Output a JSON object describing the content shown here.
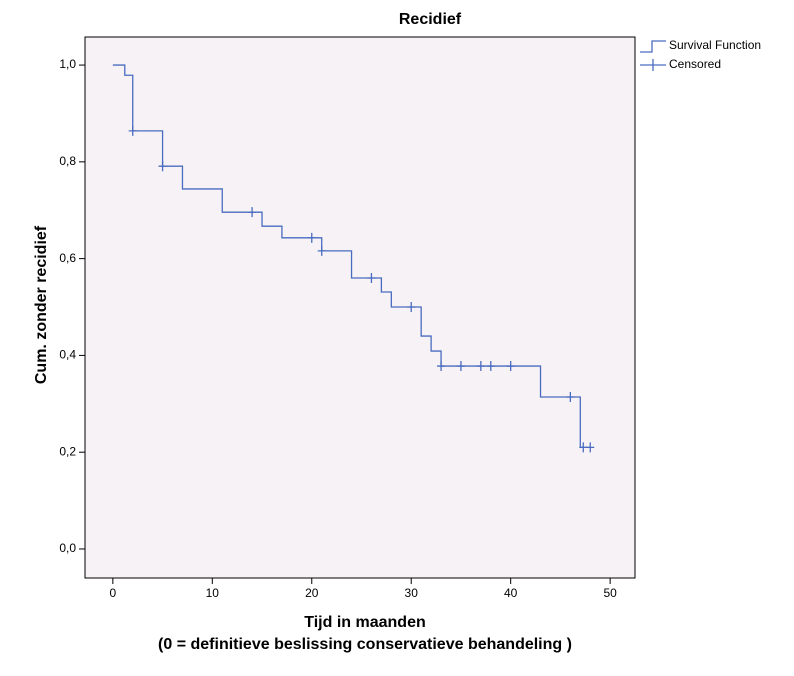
{
  "chart_data": {
    "type": "survival",
    "title": "Recidief",
    "ylabel": "Cum. zonder recidief",
    "xlabel": [
      "Tijd in maanden",
      "(0 = definitieve beslissing conservatieve behandeling )"
    ],
    "xlim": [
      -2.8,
      52.5
    ],
    "ylim": [
      -0.06,
      1.058
    ],
    "xticks": [
      0,
      10,
      20,
      30,
      40,
      50
    ],
    "yticks": [
      {
        "value": 0,
        "label": "0,0"
      },
      {
        "value": 0.2,
        "label": "0,2"
      },
      {
        "value": 0.4,
        "label": "0,4"
      },
      {
        "value": 0.6,
        "label": "0,6"
      },
      {
        "value": 0.8,
        "label": "0,8"
      },
      {
        "value": 1,
        "label": "1,0"
      }
    ],
    "background": "#f6f2f6",
    "series": [
      {
        "name": "Survival Function",
        "kind": "step",
        "color": "#4a6cc0",
        "x": [
          0,
          1.2,
          2,
          5,
          7,
          11,
          15,
          17,
          21,
          24,
          27,
          28,
          31,
          32,
          33,
          43,
          47,
          48
        ],
        "values": [
          1,
          0.979,
          0.864,
          0.791,
          0.744,
          0.696,
          0.667,
          0.643,
          0.616,
          0.56,
          0.531,
          0.5,
          0.44,
          0.409,
          0.378,
          0.314,
          0.21,
          0.21
        ]
      },
      {
        "name": "Censored",
        "kind": "censor",
        "color": "#4a6cc0",
        "x": [
          2,
          5,
          14,
          20,
          21,
          26,
          30,
          33,
          35,
          37,
          38,
          40,
          46,
          47.3,
          48
        ],
        "values": [
          0.864,
          0.791,
          0.696,
          0.643,
          0.616,
          0.56,
          0.5,
          0.378,
          0.378,
          0.378,
          0.378,
          0.378,
          0.314,
          0.21,
          0.21
        ]
      }
    ]
  }
}
